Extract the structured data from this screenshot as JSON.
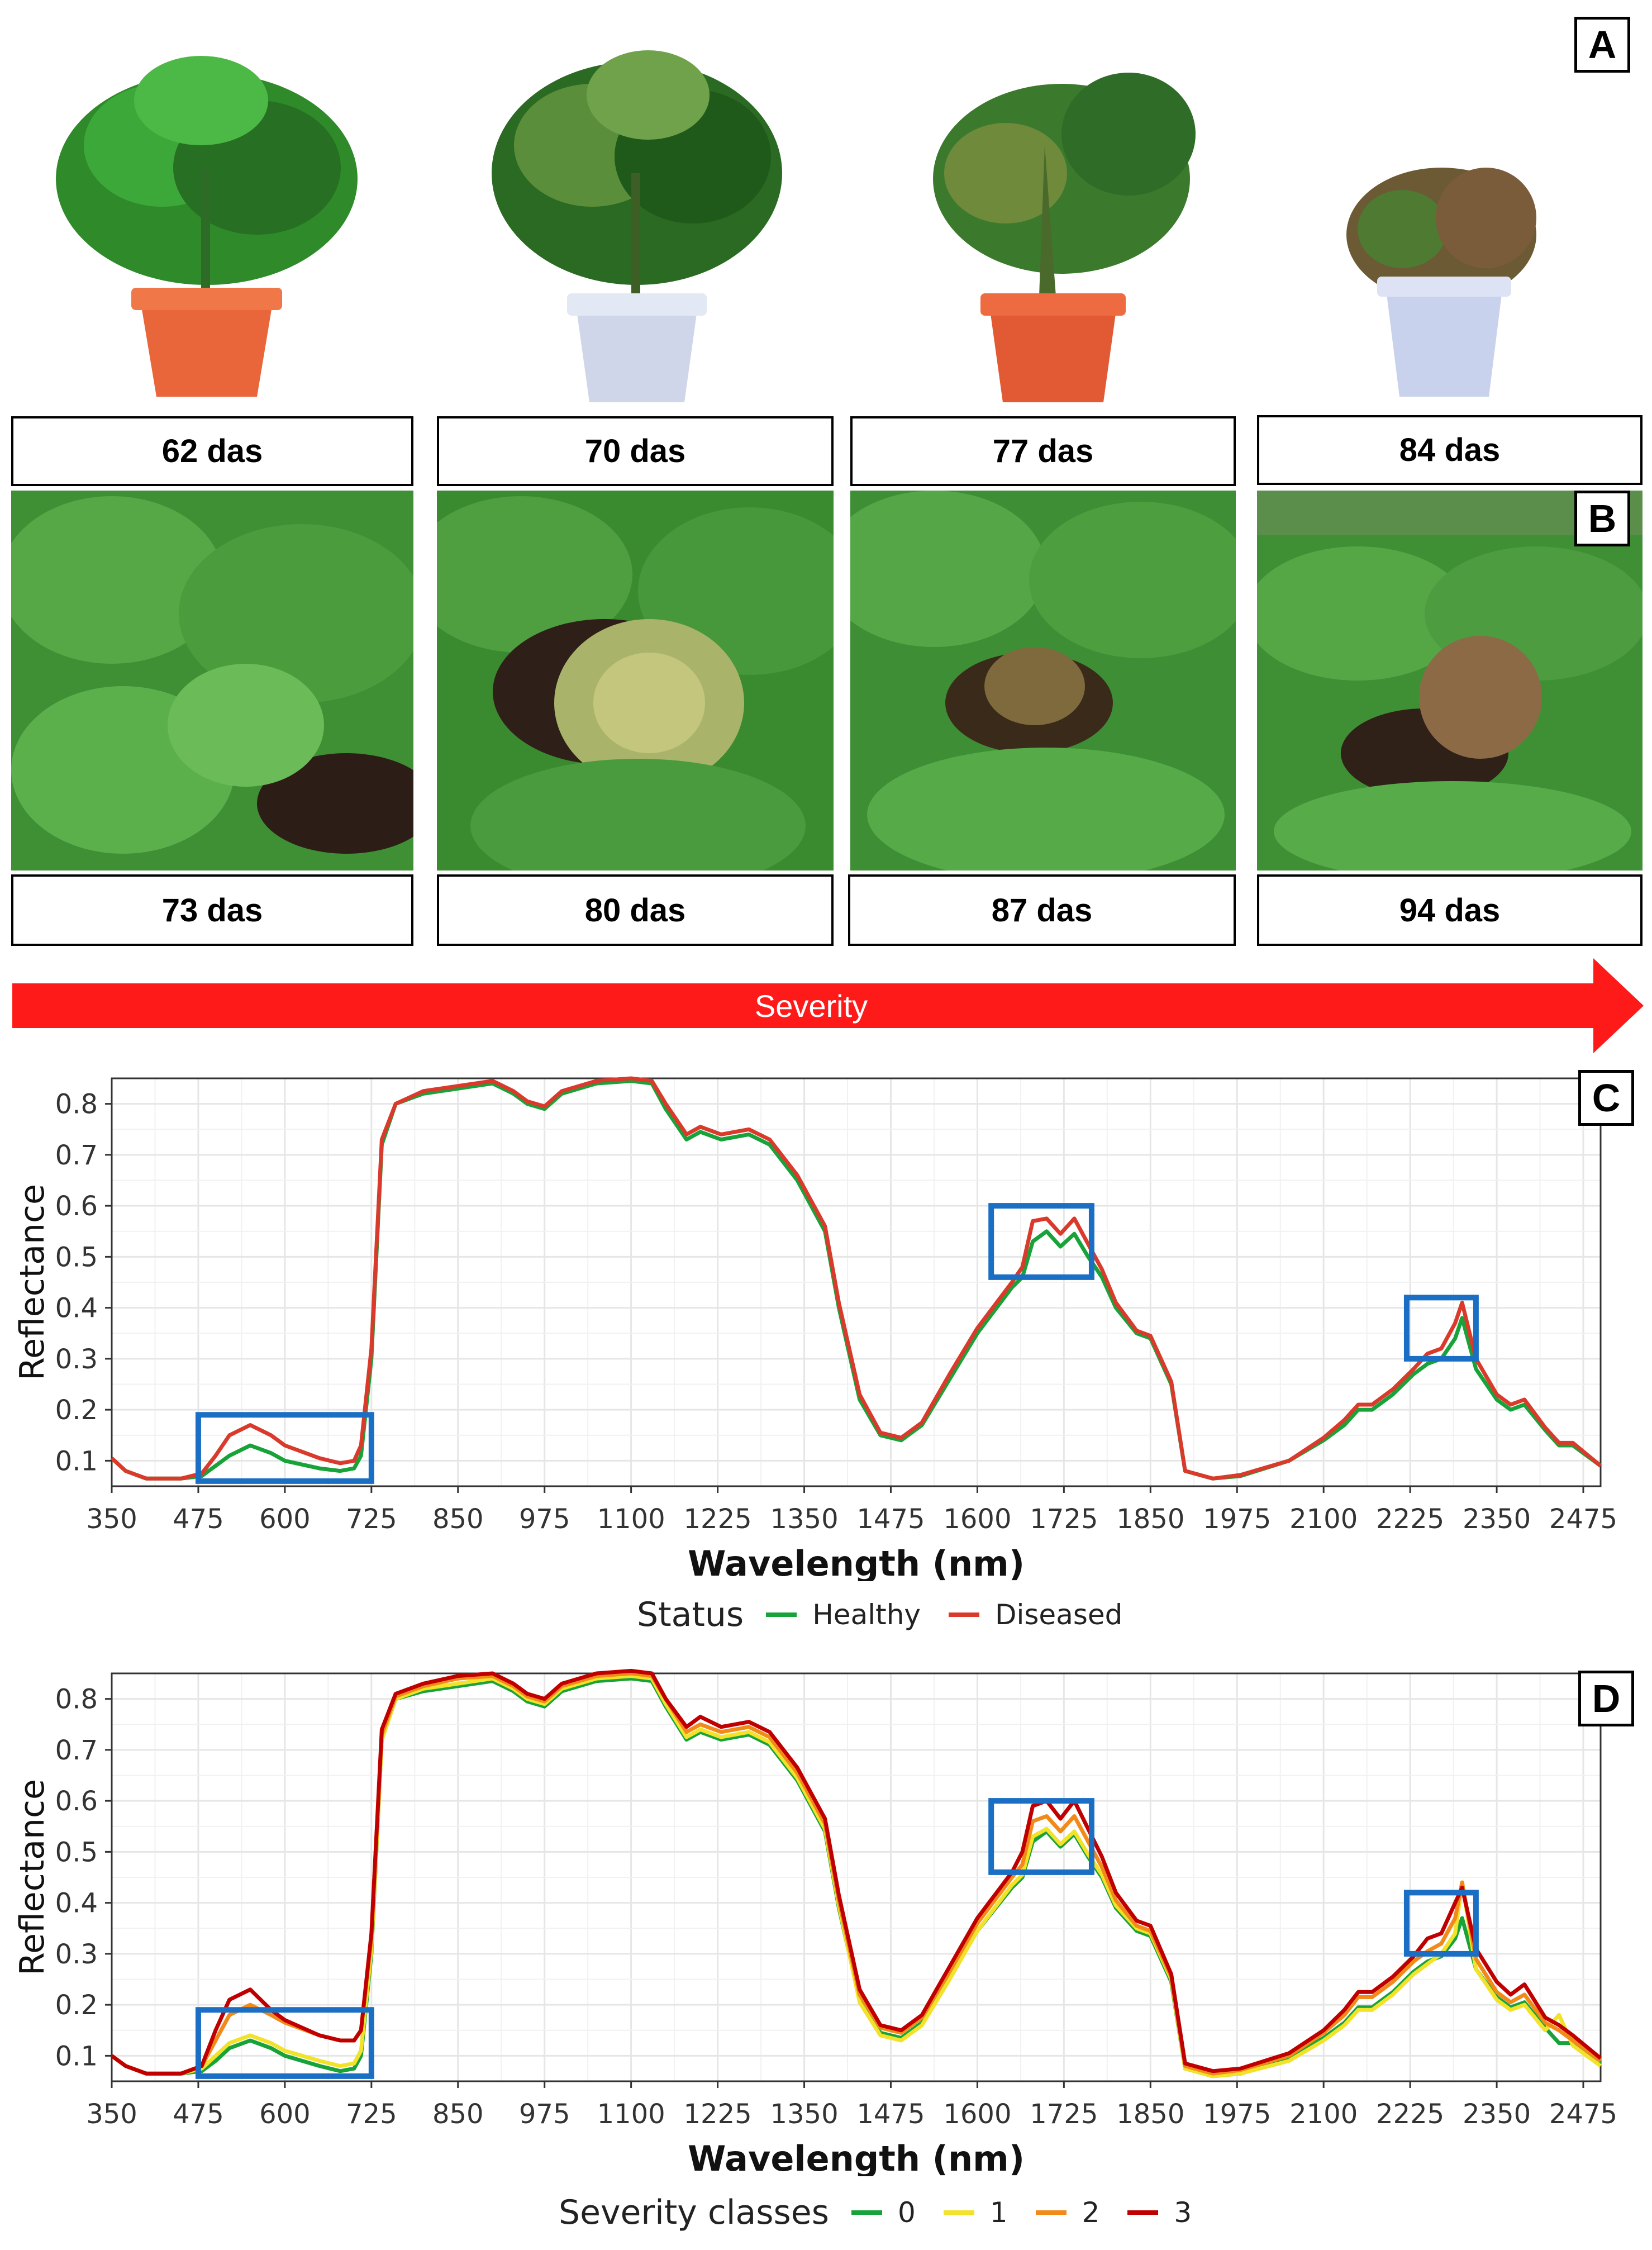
{
  "panel_letters": {
    "a": "A",
    "b": "B",
    "c": "C",
    "d": "D"
  },
  "row_a_captions": [
    "62 das",
    "70 das",
    "77 das",
    "84 das"
  ],
  "row_b_captions": [
    "73 das",
    "80 das",
    "87 das",
    "94 das"
  ],
  "severity_arrow": {
    "label": "Severity",
    "color": "#ff1a1a"
  },
  "legend_c": {
    "title": "Status",
    "items": [
      {
        "label": "Healthy",
        "color": "#18a33a"
      },
      {
        "label": "Diseased",
        "color": "#d93a2b"
      }
    ]
  },
  "legend_d": {
    "title": "Severity classes",
    "items": [
      {
        "label": "0",
        "color": "#18a33a"
      },
      {
        "label": "1",
        "color": "#f2e22a"
      },
      {
        "label": "2",
        "color": "#f28a1a"
      },
      {
        "label": "3",
        "color": "#c00000"
      }
    ]
  },
  "highlight_color": "#1a6fc4",
  "chart_data": [
    {
      "panel": "C",
      "type": "line",
      "xlabel": "Wavelength (nm)",
      "ylabel": "Reflectance",
      "xlim": [
        350,
        2500
      ],
      "ylim": [
        0.05,
        0.85
      ],
      "xticks": [
        350,
        475,
        600,
        725,
        850,
        975,
        1100,
        1225,
        1350,
        1475,
        1600,
        1725,
        1850,
        1975,
        2100,
        2225,
        2350,
        2475
      ],
      "yticks": [
        0.1,
        0.2,
        0.3,
        0.4,
        0.5,
        0.6,
        0.7,
        0.8
      ],
      "x": [
        350,
        370,
        400,
        450,
        480,
        500,
        520,
        550,
        580,
        600,
        650,
        680,
        700,
        710,
        725,
        740,
        760,
        800,
        850,
        900,
        930,
        950,
        975,
        1000,
        1050,
        1100,
        1130,
        1150,
        1180,
        1200,
        1230,
        1270,
        1300,
        1340,
        1380,
        1400,
        1430,
        1460,
        1490,
        1520,
        1560,
        1600,
        1650,
        1665,
        1680,
        1700,
        1720,
        1740,
        1760,
        1780,
        1800,
        1830,
        1850,
        1880,
        1900,
        1940,
        1980,
        2050,
        2100,
        2130,
        2150,
        2170,
        2200,
        2230,
        2250,
        2270,
        2290,
        2300,
        2320,
        2350,
        2370,
        2390,
        2420,
        2440,
        2460,
        2500
      ],
      "grid": true,
      "highlight_regions": [
        [
          475,
          725
        ],
        [
          1620,
          1765
        ],
        [
          2220,
          2320
        ]
      ],
      "series": [
        {
          "name": "Healthy",
          "color": "#18a33a",
          "values": [
            0.105,
            0.08,
            0.065,
            0.065,
            0.07,
            0.09,
            0.11,
            0.13,
            0.115,
            0.1,
            0.085,
            0.08,
            0.085,
            0.11,
            0.3,
            0.72,
            0.8,
            0.82,
            0.83,
            0.84,
            0.82,
            0.8,
            0.79,
            0.82,
            0.84,
            0.845,
            0.84,
            0.79,
            0.73,
            0.745,
            0.73,
            0.74,
            0.72,
            0.65,
            0.55,
            0.4,
            0.22,
            0.15,
            0.14,
            0.17,
            0.26,
            0.35,
            0.44,
            0.46,
            0.53,
            0.55,
            0.52,
            0.545,
            0.5,
            0.46,
            0.4,
            0.35,
            0.34,
            0.25,
            0.08,
            0.065,
            0.07,
            0.1,
            0.14,
            0.17,
            0.2,
            0.2,
            0.23,
            0.27,
            0.29,
            0.3,
            0.34,
            0.38,
            0.28,
            0.22,
            0.2,
            0.21,
            0.16,
            0.13,
            0.13,
            0.09
          ]
        },
        {
          "name": "Diseased",
          "color": "#d93a2b",
          "values": [
            0.105,
            0.08,
            0.065,
            0.065,
            0.075,
            0.11,
            0.15,
            0.17,
            0.15,
            0.13,
            0.105,
            0.095,
            0.1,
            0.13,
            0.32,
            0.73,
            0.8,
            0.825,
            0.835,
            0.845,
            0.825,
            0.805,
            0.795,
            0.825,
            0.845,
            0.85,
            0.845,
            0.8,
            0.74,
            0.755,
            0.74,
            0.75,
            0.73,
            0.66,
            0.56,
            0.41,
            0.23,
            0.155,
            0.145,
            0.175,
            0.27,
            0.36,
            0.45,
            0.48,
            0.57,
            0.575,
            0.545,
            0.575,
            0.525,
            0.475,
            0.41,
            0.355,
            0.345,
            0.255,
            0.08,
            0.065,
            0.072,
            0.1,
            0.145,
            0.18,
            0.21,
            0.21,
            0.24,
            0.28,
            0.31,
            0.32,
            0.37,
            0.41,
            0.3,
            0.23,
            0.21,
            0.22,
            0.165,
            0.135,
            0.135,
            0.09
          ]
        }
      ]
    },
    {
      "panel": "D",
      "type": "line",
      "xlabel": "Wavelength (nm)",
      "ylabel": "Reflectance",
      "xlim": [
        350,
        2500
      ],
      "ylim": [
        0.05,
        0.85
      ],
      "xticks": [
        350,
        475,
        600,
        725,
        850,
        975,
        1100,
        1225,
        1350,
        1475,
        1600,
        1725,
        1850,
        1975,
        2100,
        2225,
        2350,
        2475
      ],
      "yticks": [
        0.1,
        0.2,
        0.3,
        0.4,
        0.5,
        0.6,
        0.7,
        0.8
      ],
      "x": [
        350,
        370,
        400,
        450,
        480,
        500,
        520,
        550,
        580,
        600,
        650,
        680,
        700,
        710,
        725,
        740,
        760,
        800,
        850,
        900,
        930,
        950,
        975,
        1000,
        1050,
        1100,
        1130,
        1150,
        1180,
        1200,
        1230,
        1270,
        1300,
        1340,
        1380,
        1400,
        1430,
        1460,
        1490,
        1520,
        1560,
        1600,
        1650,
        1665,
        1680,
        1700,
        1720,
        1740,
        1760,
        1780,
        1800,
        1830,
        1850,
        1880,
        1900,
        1940,
        1980,
        2050,
        2100,
        2130,
        2150,
        2170,
        2200,
        2230,
        2250,
        2270,
        2290,
        2300,
        2320,
        2350,
        2370,
        2390,
        2420,
        2440,
        2460,
        2500
      ],
      "grid": true,
      "highlight_regions": [
        [
          475,
          725
        ],
        [
          1620,
          1765
        ],
        [
          2220,
          2320
        ]
      ],
      "series": [
        {
          "name": "0",
          "color": "#18a33a",
          "values": [
            0.1,
            0.08,
            0.065,
            0.065,
            0.07,
            0.09,
            0.115,
            0.13,
            0.115,
            0.1,
            0.08,
            0.07,
            0.075,
            0.1,
            0.3,
            0.72,
            0.8,
            0.815,
            0.825,
            0.835,
            0.815,
            0.795,
            0.785,
            0.815,
            0.835,
            0.84,
            0.835,
            0.785,
            0.72,
            0.735,
            0.72,
            0.73,
            0.71,
            0.64,
            0.54,
            0.39,
            0.21,
            0.145,
            0.135,
            0.165,
            0.255,
            0.345,
            0.43,
            0.45,
            0.52,
            0.54,
            0.51,
            0.535,
            0.49,
            0.45,
            0.39,
            0.345,
            0.335,
            0.245,
            0.075,
            0.06,
            0.065,
            0.095,
            0.135,
            0.165,
            0.195,
            0.195,
            0.225,
            0.265,
            0.285,
            0.295,
            0.33,
            0.37,
            0.27,
            0.215,
            0.195,
            0.205,
            0.155,
            0.125,
            0.125,
            0.085
          ]
        },
        {
          "name": "1",
          "color": "#f2e22a",
          "values": [
            0.1,
            0.08,
            0.065,
            0.065,
            0.075,
            0.1,
            0.125,
            0.14,
            0.125,
            0.11,
            0.09,
            0.08,
            0.085,
            0.11,
            0.31,
            0.72,
            0.8,
            0.82,
            0.83,
            0.84,
            0.82,
            0.8,
            0.79,
            0.82,
            0.84,
            0.845,
            0.84,
            0.79,
            0.725,
            0.74,
            0.725,
            0.735,
            0.715,
            0.645,
            0.545,
            0.395,
            0.205,
            0.14,
            0.13,
            0.16,
            0.25,
            0.345,
            0.435,
            0.455,
            0.53,
            0.545,
            0.515,
            0.54,
            0.495,
            0.455,
            0.395,
            0.35,
            0.34,
            0.25,
            0.075,
            0.06,
            0.065,
            0.09,
            0.13,
            0.16,
            0.19,
            0.19,
            0.22,
            0.26,
            0.28,
            0.3,
            0.34,
            0.44,
            0.27,
            0.21,
            0.19,
            0.2,
            0.15,
            0.18,
            0.12,
            0.08
          ]
        },
        {
          "name": "2",
          "color": "#f28a1a",
          "values": [
            0.1,
            0.08,
            0.065,
            0.065,
            0.08,
            0.13,
            0.18,
            0.2,
            0.18,
            0.165,
            0.14,
            0.13,
            0.13,
            0.15,
            0.33,
            0.73,
            0.805,
            0.825,
            0.84,
            0.845,
            0.825,
            0.805,
            0.795,
            0.825,
            0.845,
            0.85,
            0.845,
            0.8,
            0.735,
            0.75,
            0.735,
            0.745,
            0.725,
            0.655,
            0.555,
            0.405,
            0.22,
            0.155,
            0.145,
            0.175,
            0.265,
            0.36,
            0.45,
            0.475,
            0.56,
            0.57,
            0.54,
            0.57,
            0.52,
            0.47,
            0.405,
            0.355,
            0.345,
            0.255,
            0.08,
            0.065,
            0.072,
            0.1,
            0.145,
            0.18,
            0.215,
            0.215,
            0.245,
            0.285,
            0.305,
            0.32,
            0.37,
            0.44,
            0.29,
            0.225,
            0.205,
            0.22,
            0.165,
            0.15,
            0.13,
            0.09
          ]
        },
        {
          "name": "3",
          "color": "#c00000",
          "values": [
            0.1,
            0.08,
            0.065,
            0.065,
            0.08,
            0.15,
            0.21,
            0.23,
            0.19,
            0.17,
            0.14,
            0.13,
            0.13,
            0.15,
            0.34,
            0.74,
            0.81,
            0.83,
            0.845,
            0.85,
            0.83,
            0.81,
            0.8,
            0.83,
            0.85,
            0.855,
            0.85,
            0.8,
            0.745,
            0.765,
            0.745,
            0.755,
            0.735,
            0.665,
            0.565,
            0.415,
            0.23,
            0.16,
            0.15,
            0.18,
            0.275,
            0.37,
            0.46,
            0.5,
            0.59,
            0.6,
            0.565,
            0.6,
            0.545,
            0.49,
            0.42,
            0.365,
            0.355,
            0.26,
            0.085,
            0.07,
            0.075,
            0.105,
            0.15,
            0.19,
            0.225,
            0.225,
            0.255,
            0.295,
            0.33,
            0.34,
            0.4,
            0.43,
            0.31,
            0.245,
            0.22,
            0.24,
            0.175,
            0.16,
            0.14,
            0.095
          ]
        }
      ]
    }
  ]
}
